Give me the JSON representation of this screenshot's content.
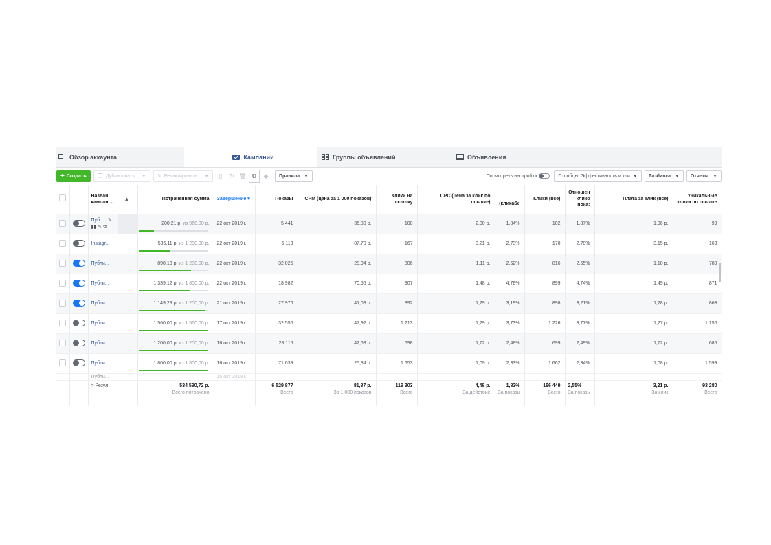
{
  "tabs": [
    {
      "label": "Обзор аккаунта"
    },
    {
      "label": "Кампании"
    },
    {
      "label": "Группы объявлений"
    },
    {
      "label": "Объявления"
    }
  ],
  "toolbar": {
    "create": "Создать",
    "duplicate": "Дублировать",
    "edit": "Редактировать",
    "rules": "Правила",
    "view_settings": "Посмотреть настройки",
    "columns": "Столбцы: Эффективность и кли",
    "breakdown": "Разбивка",
    "reports": "Отчеты"
  },
  "columns": {
    "name": "Назван кампан",
    "spent": "Потраченная сумма",
    "ends": "Завершение",
    "impressions": "Показы",
    "cpm": "CPM (цена за 1 000 показов)",
    "link_clicks": "Клики на ссылку",
    "cpc": "CPC (цена за клик по ссылке)",
    "ctr": "(кликабе",
    "clicks_all": "Клики (все)",
    "ratio": "Отношен клико пока:",
    "cpc_all": "Плата за клик (все)",
    "unique": "Уникальные клики по ссылке"
  },
  "rows": [
    {
      "toggle": "off",
      "name": "Пуб...",
      "spent": "200,21 р.",
      "of": "из 960,00 р.",
      "ends": "22 окт 2019 г.",
      "impr": "5 441",
      "cpm": "36,80 р.",
      "lc": "100",
      "cpc": "2,00 р.",
      "ctr": "1,84%",
      "ca": "102",
      "ratio": "1,87%",
      "cpca": "1,96 р.",
      "uniq": "99",
      "progress": 0.21
    },
    {
      "toggle": "off",
      "name": "Instagr...",
      "spent": "536,11 р.",
      "of": "из 1 200,00 р.",
      "ends": "22 окт 2019 г.",
      "impr": "6 113",
      "cpm": "87,70 р.",
      "lc": "167",
      "cpc": "3,21 р.",
      "ctr": "2,73%",
      "ca": "170",
      "ratio": "2,78%",
      "cpca": "3,15 р.",
      "uniq": "163",
      "progress": 0.45
    },
    {
      "toggle": "on",
      "name": "Публи...",
      "spent": "898,13 р.",
      "of": "из 1 200,00 р.",
      "ends": "22 окт 2019 г.",
      "impr": "32 025",
      "cpm": "28,04 р.",
      "lc": "806",
      "cpc": "1,11 р.",
      "ctr": "2,52%",
      "ca": "816",
      "ratio": "2,55%",
      "cpca": "1,10 р.",
      "uniq": "789",
      "progress": 0.75
    },
    {
      "toggle": "on",
      "name": "Публи...",
      "spent": "1 339,12 р.",
      "of": "из 1 800,00 р.",
      "ends": "22 окт 2019 г.",
      "impr": "18 982",
      "cpm": "70,55 р.",
      "lc": "907",
      "cpc": "1,48 р.",
      "ctr": "4,78%",
      "ca": "899",
      "ratio": "4,74%",
      "cpca": "1,49 р.",
      "uniq": "871",
      "progress": 0.74
    },
    {
      "toggle": "on",
      "name": "Публи...",
      "spent": "1 149,29 р.",
      "of": "из 1 200,00 р.",
      "ends": "21 окт 2019 г.",
      "impr": "27 976",
      "cpm": "41,08 р.",
      "lc": "892",
      "cpc": "1,29 р.",
      "ctr": "3,19%",
      "ca": "898",
      "ratio": "3,21%",
      "cpca": "1,28 р.",
      "uniq": "863",
      "progress": 0.96
    },
    {
      "toggle": "off",
      "name": "Публи...",
      "spent": "1 560,00 р.",
      "of": "из 1 560,00 р.",
      "ends": "17 окт 2019 г.",
      "impr": "32 556",
      "cpm": "47,92 р.",
      "lc": "1 213",
      "cpc": "1,29 р.",
      "ctr": "3,73%",
      "ca": "1 226",
      "ratio": "3,77%",
      "cpca": "1,27 р.",
      "uniq": "1 156",
      "progress": 1.0
    },
    {
      "toggle": "off",
      "name": "Публи...",
      "spent": "1 200,00 р.",
      "of": "из 1 200,00 р.",
      "ends": "16 окт 2019 г.",
      "impr": "28 115",
      "cpm": "42,68 р.",
      "lc": "698",
      "cpc": "1,72 р.",
      "ctr": "2,48%",
      "ca": "699",
      "ratio": "2,49%",
      "cpca": "1,72 р.",
      "uniq": "685",
      "progress": 1.0
    },
    {
      "toggle": "off",
      "name": "Публи...",
      "spent": "1 800,00 р.",
      "of": "из 1 800,00 р.",
      "ends": "16 окт 2019 г.",
      "impr": "71 039",
      "cpm": "25,34 р.",
      "lc": "1 653",
      "cpc": "1,09 р.",
      "ctr": "2,33%",
      "ca": "1 662",
      "ratio": "2,34%",
      "cpca": "1,08 р.",
      "uniq": "1 599",
      "progress": 1.0
    }
  ],
  "partial_row": {
    "name": "Публи...",
    "ends": "15 окт 2019 г."
  },
  "totals": {
    "label": "Резул",
    "spent": "534 590,72 р.",
    "spent_sub": "Всего потрачено",
    "impr": "6 529 877",
    "impr_sub": "Всего",
    "cpm": "81,87 р.",
    "cpm_sub": "За 1 000 показов",
    "lc": "119 303",
    "lc_sub": "Всего",
    "cpc": "4,48 р.",
    "cpc_sub": "За действие",
    "ctr": "1,83%",
    "ctr_sub": "За показы",
    "ca": "166 449",
    "ca_sub": "Всего",
    "ratio": "2,55%",
    "ratio_sub": "За показы",
    "cpca": "3,21 р.",
    "cpca_sub": "За клик",
    "uniq": "93 280",
    "uniq_sub": "Всего"
  },
  "colors": {
    "accent": "#1877f2",
    "green": "#42b72a",
    "link": "#385898"
  }
}
